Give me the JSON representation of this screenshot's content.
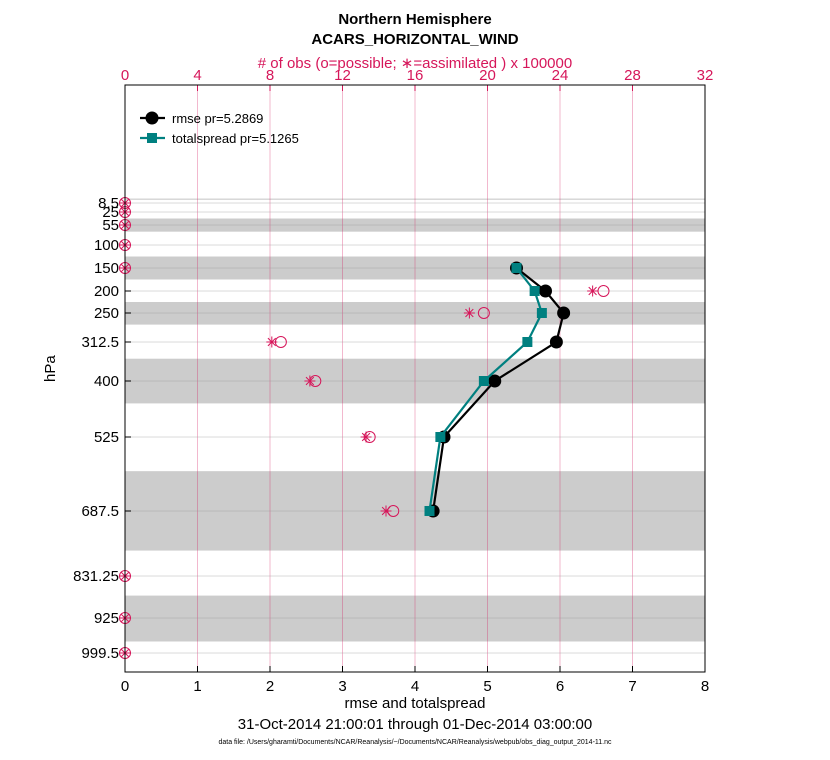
{
  "chart_data": {
    "type": "line",
    "title": "Northern Hemisphere",
    "subtitle": "ACARS_HORIZONTAL_WIND",
    "xlabel": "rmse and totalspread",
    "ylabel": "hPa",
    "top_xlabel": "# of obs (o=possible; ∗=assimilated ) x 100000",
    "date_range": "31-Oct-2014 21:00:01 through 01-Dec-2014 03:00:00",
    "data_file": "data file: /Users/gharamti/Documents/NCAR/Reanalysis/~/Documents/NCAR/Reanalysis/webpub/obs_diag_output_2014-11.nc",
    "xlim": [
      0,
      8
    ],
    "xticks": [
      0,
      1,
      2,
      3,
      4,
      5,
      6,
      7,
      8
    ],
    "top_xlim": [
      0,
      32
    ],
    "top_xticks": [
      0,
      4,
      8,
      12,
      16,
      20,
      24,
      28,
      32
    ],
    "y_scale": "reversed",
    "yticks": [
      {
        "value": 8.5,
        "label": "8.5"
      },
      {
        "value": 25,
        "label": "25"
      },
      {
        "value": 55,
        "label": "55"
      },
      {
        "value": 100,
        "label": "100"
      },
      {
        "value": 150,
        "label": "150"
      },
      {
        "value": 200,
        "label": "200"
      },
      {
        "value": 250,
        "label": "250"
      },
      {
        "value": 312.5,
        "label": "312.5"
      },
      {
        "value": 400,
        "label": "400"
      },
      {
        "value": 525,
        "label": "525"
      },
      {
        "value": 687.5,
        "label": "687.5"
      },
      {
        "value": 831.25,
        "label": "831.25"
      },
      {
        "value": 925,
        "label": "925"
      },
      {
        "value": 999.5,
        "label": "999.5"
      }
    ],
    "level_bands": [
      [
        1,
        3
      ],
      [
        40,
        70
      ],
      [
        125,
        175
      ],
      [
        225,
        275
      ],
      [
        350,
        450
      ],
      [
        600,
        775
      ],
      [
        875,
        975
      ]
    ],
    "series": [
      {
        "name": "rmse pr=5.2869",
        "color": "#000000",
        "marker": "circle",
        "x": [
          5.4,
          5.8,
          6.05,
          5.95,
          5.1,
          4.4,
          4.25
        ],
        "y": [
          150,
          200,
          250,
          312.5,
          400,
          525,
          687.5
        ]
      },
      {
        "name": "totalspread pr=5.1265",
        "color": "#008080",
        "marker": "square",
        "x": [
          5.4,
          5.65,
          5.75,
          5.55,
          4.95,
          4.35,
          4.2
        ],
        "y": [
          150,
          200,
          250,
          312.5,
          400,
          525,
          687.5
        ]
      }
    ],
    "obs_counts": {
      "color": "#d6165a",
      "levels": [
        8.5,
        25,
        55,
        100,
        150,
        200,
        250,
        312.5,
        400,
        525,
        687.5,
        831.25,
        925,
        999.5
      ],
      "possible": [
        0,
        0,
        0,
        0,
        0,
        26.4,
        19.8,
        8.6,
        10.5,
        13.5,
        14.8,
        0,
        0,
        0
      ],
      "assimilated": [
        0,
        0,
        0,
        0,
        0,
        25.8,
        19.0,
        8.1,
        10.2,
        13.3,
        14.4,
        0,
        0,
        0
      ]
    },
    "legend_position": "top-left",
    "grid": true
  }
}
